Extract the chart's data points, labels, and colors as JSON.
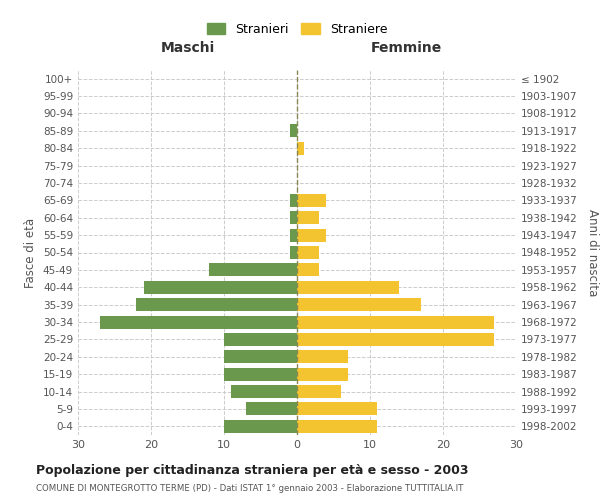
{
  "age_groups": [
    "0-4",
    "5-9",
    "10-14",
    "15-19",
    "20-24",
    "25-29",
    "30-34",
    "35-39",
    "40-44",
    "45-49",
    "50-54",
    "55-59",
    "60-64",
    "65-69",
    "70-74",
    "75-79",
    "80-84",
    "85-89",
    "90-94",
    "95-99",
    "100+"
  ],
  "birth_years": [
    "1998-2002",
    "1993-1997",
    "1988-1992",
    "1983-1987",
    "1978-1982",
    "1973-1977",
    "1968-1972",
    "1963-1967",
    "1958-1962",
    "1953-1957",
    "1948-1952",
    "1943-1947",
    "1938-1942",
    "1933-1937",
    "1928-1932",
    "1923-1927",
    "1918-1922",
    "1913-1917",
    "1908-1912",
    "1903-1907",
    "≤ 1902"
  ],
  "males": [
    10,
    7,
    9,
    10,
    10,
    10,
    27,
    22,
    21,
    12,
    1,
    1,
    1,
    1,
    0,
    0,
    0,
    1,
    0,
    0,
    0
  ],
  "females": [
    11,
    11,
    6,
    7,
    7,
    27,
    27,
    17,
    14,
    3,
    3,
    4,
    3,
    4,
    0,
    0,
    1,
    0,
    0,
    0,
    0
  ],
  "male_color": "#6a994e",
  "female_color": "#f4c430",
  "background_color": "#ffffff",
  "grid_color": "#cccccc",
  "title": "Popolazione per cittadinanza straniera per età e sesso - 2003",
  "subtitle": "COMUNE DI MONTEGROTTO TERME (PD) - Dati ISTAT 1° gennaio 2003 - Elaborazione TUTTITALIA.IT",
  "xlabel_left": "Maschi",
  "xlabel_right": "Femmine",
  "ylabel_left": "Fasce di età",
  "ylabel_right": "Anni di nascita",
  "legend_males": "Stranieri",
  "legend_females": "Straniere",
  "xlim": 30,
  "bar_height": 0.75
}
